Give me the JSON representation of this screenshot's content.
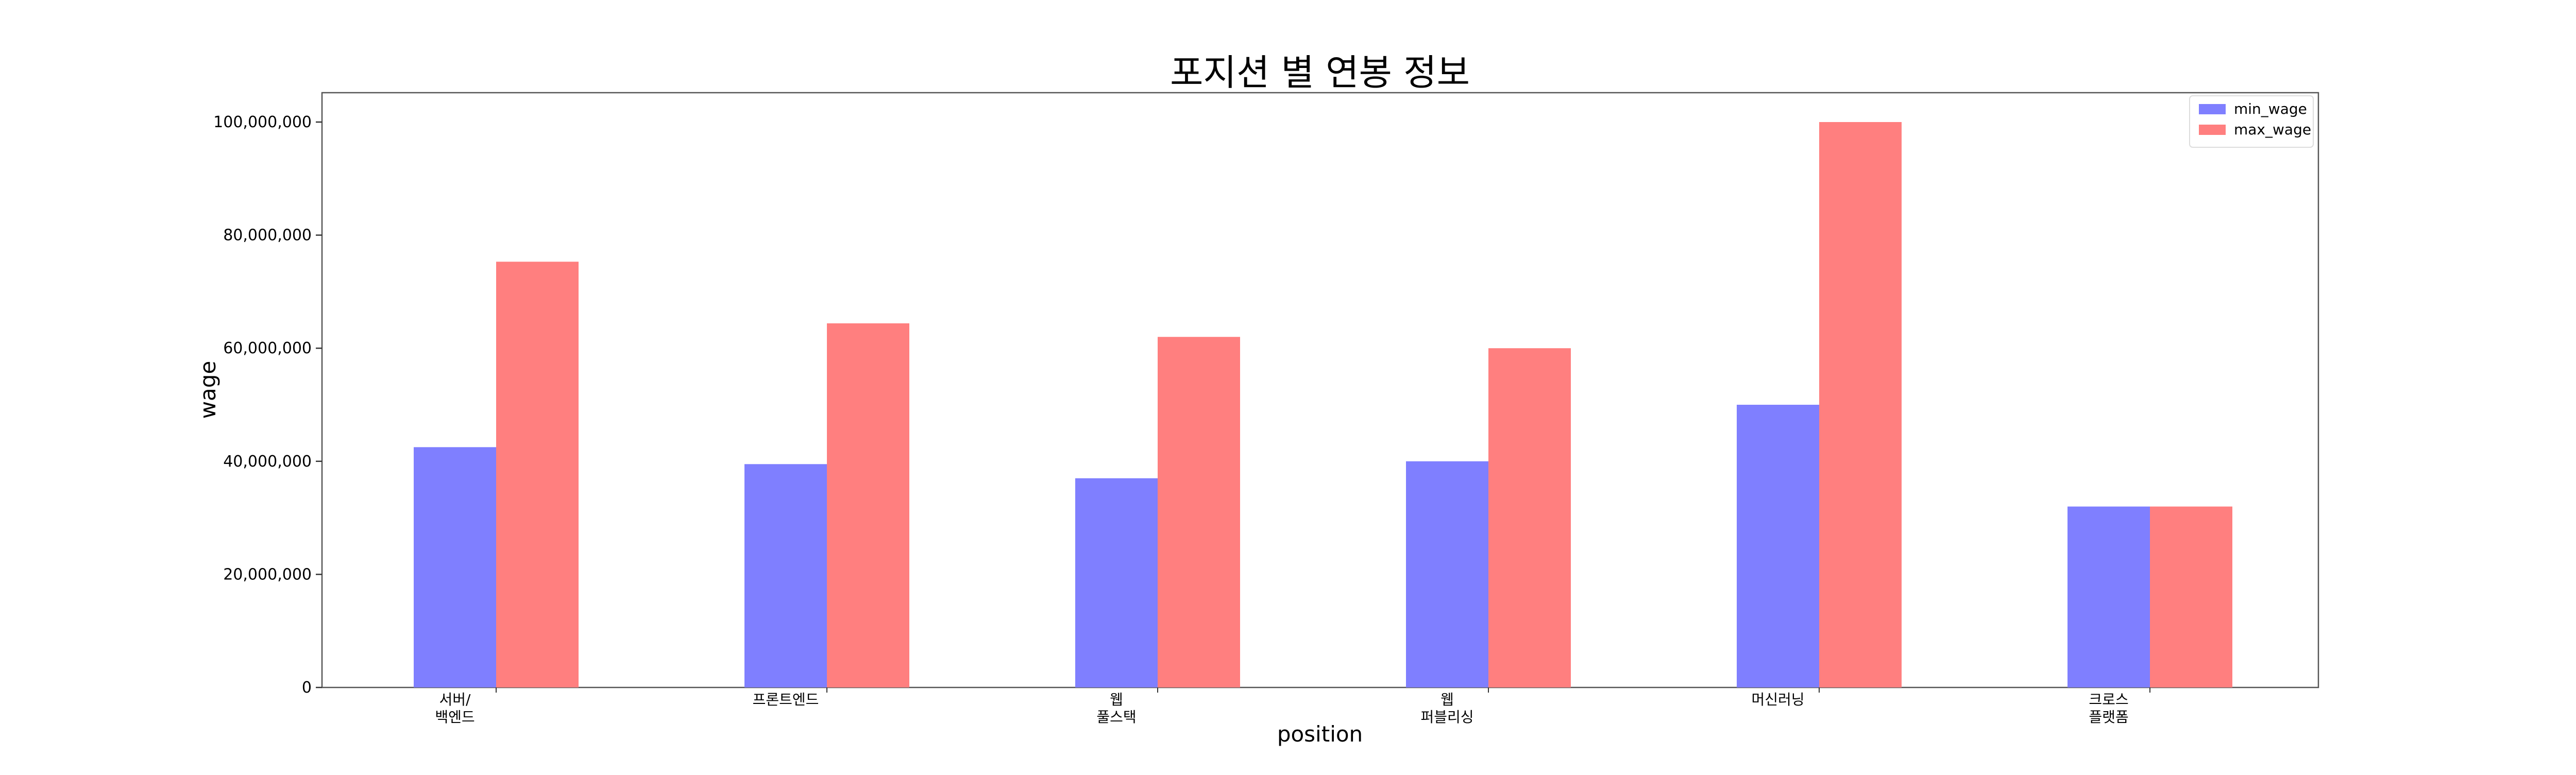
{
  "chart_data": {
    "type": "bar",
    "title": "포지션 별 연봉 정보",
    "xlabel": "position",
    "ylabel": "wage",
    "categories": [
      [
        "서버/",
        "백엔드"
      ],
      [
        "프론트엔드"
      ],
      [
        "웹",
        "풀스택"
      ],
      [
        "웹",
        "퍼블리싱"
      ],
      [
        "머신러닝"
      ],
      [
        "크로스",
        "플랫폼"
      ]
    ],
    "series": [
      {
        "name": "min_wage",
        "color": "#7f7fff",
        "values": [
          42500000,
          39500000,
          37000000,
          40000000,
          50000000,
          32000000
        ]
      },
      {
        "name": "max_wage",
        "color": "#ff7f7f",
        "values": [
          75300000,
          64400000,
          62000000,
          60000000,
          100000000,
          32000000
        ]
      }
    ],
    "ylim": [
      0,
      105000000
    ],
    "yticks": [
      0,
      20000000,
      40000000,
      60000000,
      80000000,
      100000000
    ],
    "ytick_labels": [
      "0",
      "20,000,000",
      "40,000,000",
      "60,000,000",
      "80,000,000",
      "100,000,000"
    ],
    "legend": "top-right",
    "grid": false
  }
}
